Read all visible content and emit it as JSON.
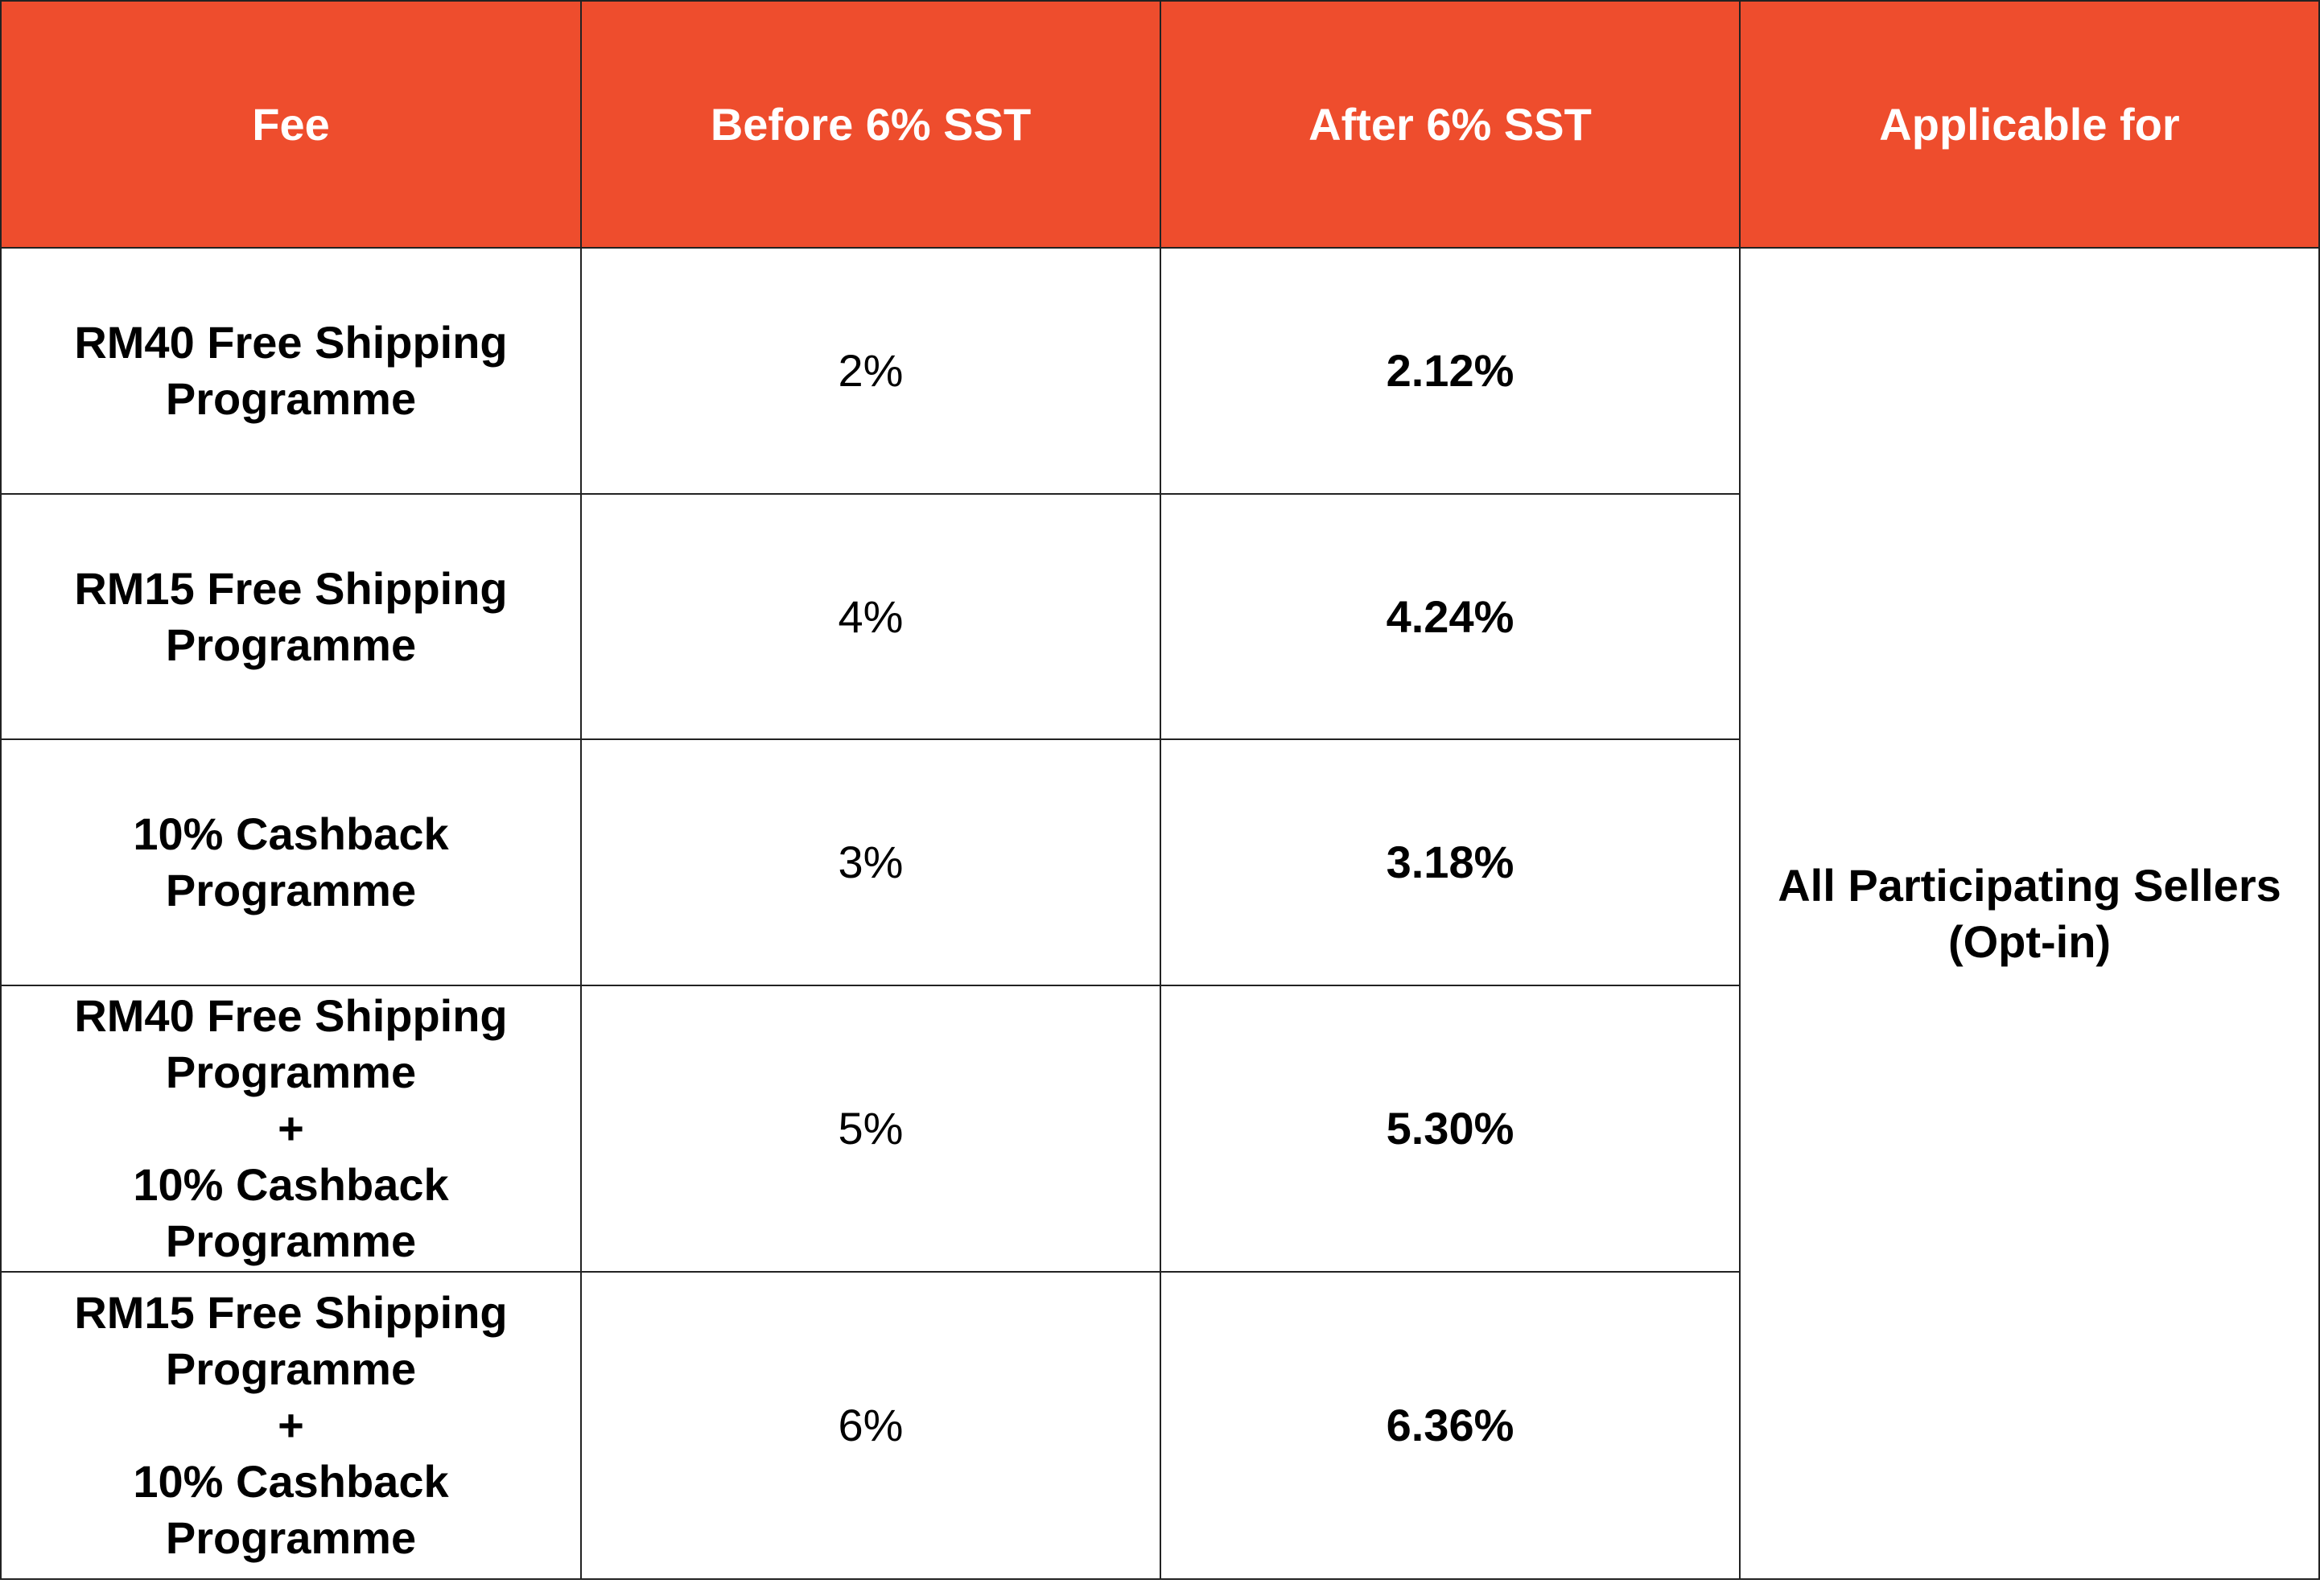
{
  "header": {
    "fee": "Fee",
    "before": "Before 6% SST",
    "after": "After 6% SST",
    "applicable": "Applicable for"
  },
  "rows": [
    {
      "fee_lines": [
        "RM40 Free Shipping",
        "Programme"
      ],
      "before": "2%",
      "after": "2.12%"
    },
    {
      "fee_lines": [
        "RM15 Free Shipping",
        "Programme"
      ],
      "before": "4%",
      "after": "4.24%"
    },
    {
      "fee_lines": [
        "10% Cashback",
        "Programme"
      ],
      "before": "3%",
      "after": "3.18%"
    },
    {
      "fee_lines": [
        "RM40 Free Shipping",
        "Programme",
        "+",
        "10% Cashback",
        "Programme"
      ],
      "before": "5%",
      "after": "5.30%"
    },
    {
      "fee_lines": [
        "RM15 Free Shipping",
        "Programme",
        "+",
        "10% Cashback",
        "Programme"
      ],
      "before": "6%",
      "after": "6.36%"
    }
  ],
  "applicable": {
    "line1": "All Participating Sellers",
    "line2": "(Opt-in)"
  },
  "colors": {
    "header_bg": "#ee4d2d",
    "header_text": "#ffffff",
    "border": "#222222"
  }
}
